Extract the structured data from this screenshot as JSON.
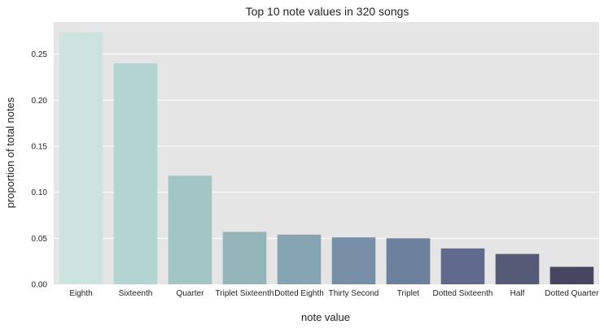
{
  "chart_data": {
    "type": "bar",
    "title": "Top 10 note values in 320 songs",
    "xlabel": "note value",
    "ylabel": "proportion of total notes",
    "categories": [
      "Eighth",
      "Sixteenth",
      "Quarter",
      "Triplet Sixteenth",
      "Dotted Eighth",
      "Thirty Second",
      "Triplet",
      "Dotted Sixteenth",
      "Half",
      "Dotted Quarter"
    ],
    "values": [
      0.274,
      0.24,
      0.118,
      0.057,
      0.054,
      0.051,
      0.05,
      0.039,
      0.033,
      0.019
    ],
    "ylim": [
      0,
      0.285
    ],
    "yticks": [
      0.0,
      0.05,
      0.1,
      0.15,
      0.2,
      0.25
    ],
    "ytick_labels": [
      "0.00",
      "0.05",
      "0.10",
      "0.15",
      "0.20",
      "0.25"
    ],
    "grid": true,
    "legend": "none",
    "colors": {
      "plot_background": "#e5e5e5",
      "grid": "#ffffff",
      "bars": [
        "#cde4de",
        "#b2d5d2",
        "#a1c6c5",
        "#93b5ba",
        "#84a5b1",
        "#7890a6",
        "#6c7f9c",
        "#5f6a8c",
        "#555a77",
        "#474560"
      ]
    }
  }
}
